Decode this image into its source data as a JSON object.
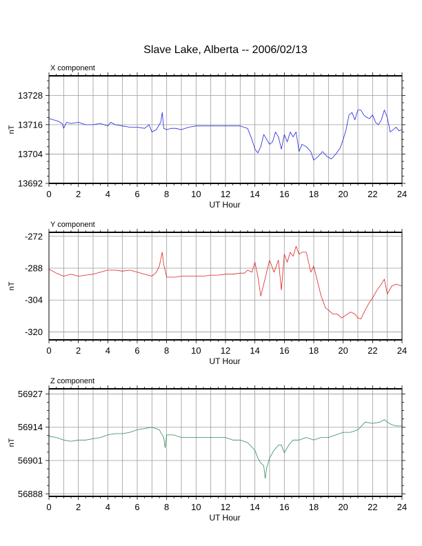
{
  "title": "Slave Lake, Alberta -- 2006/02/13",
  "chart_data": [
    {
      "type": "line",
      "title": "X component",
      "xlabel": "UT Hour",
      "ylabel": "nT",
      "xlim": [
        0,
        24
      ],
      "ylim": [
        13692,
        13736
      ],
      "xticks": [
        "0",
        "2",
        "4",
        "6",
        "8",
        "10",
        "12",
        "14",
        "16",
        "18",
        "20",
        "22",
        "24"
      ],
      "yticks": [
        "13692",
        "13704",
        "13716",
        "13728"
      ],
      "grid": true,
      "color": "#2020e0",
      "series": [
        {
          "x": [
            0,
            0.3,
            0.6,
            0.9,
            1.0,
            1.2,
            1.5,
            2.0,
            2.5,
            3.0,
            3.5,
            4.0,
            4.2,
            4.5,
            5.0,
            5.5,
            6.0,
            6.5,
            6.8,
            7.0,
            7.3,
            7.6,
            7.7,
            7.8,
            8.0,
            8.3,
            8.6,
            9.0,
            9.5,
            10.0,
            10.5,
            11.0,
            11.5,
            12.0,
            12.5,
            13.0,
            13.5,
            13.8,
            14.0,
            14.2,
            14.4,
            14.6,
            14.8,
            15.0,
            15.2,
            15.4,
            15.6,
            15.8,
            16.0,
            16.2,
            16.4,
            16.6,
            16.8,
            17.0,
            17.2,
            17.5,
            17.8,
            18.0,
            18.3,
            18.6,
            18.9,
            19.2,
            19.5,
            19.8,
            20.0,
            20.2,
            20.4,
            20.6,
            20.8,
            21.0,
            21.2,
            21.4,
            21.6,
            21.8,
            22.0,
            22.2,
            22.4,
            22.6,
            22.8,
            23.0,
            23.2,
            23.4,
            23.6,
            23.8,
            24.0
          ],
          "y": [
            13718.5,
            13718,
            13717.5,
            13716.5,
            13714.5,
            13717,
            13716.5,
            13717,
            13716,
            13716,
            13716.5,
            13715.5,
            13717,
            13716,
            13715.5,
            13715,
            13715,
            13714.5,
            13716,
            13713,
            13714,
            13717,
            13721,
            13714.5,
            13714,
            13714.5,
            13714.5,
            13714,
            13715,
            13715.5,
            13715.5,
            13715.5,
            13715.5,
            13715.5,
            13715.5,
            13715.5,
            13714.5,
            13710,
            13706,
            13704.5,
            13707,
            13712,
            13710,
            13708,
            13709,
            13713,
            13711,
            13706,
            13712,
            13709,
            13713,
            13711,
            13713,
            13705,
            13708,
            13707,
            13705,
            13701.5,
            13703,
            13705,
            13703,
            13702,
            13704,
            13706.5,
            13710,
            13714,
            13720,
            13721,
            13718,
            13722,
            13722,
            13720,
            13719,
            13718.5,
            13720,
            13717,
            13716,
            13718,
            13722,
            13719,
            13713,
            13714,
            13715,
            13713.5,
            13714
          ]
        }
      ]
    },
    {
      "type": "line",
      "title": "Y component",
      "xlabel": "UT Hour",
      "ylabel": "nT",
      "xlim": [
        0,
        24
      ],
      "ylim": [
        -324,
        -270
      ],
      "xticks": [
        "0",
        "2",
        "4",
        "6",
        "8",
        "10",
        "12",
        "14",
        "16",
        "18",
        "20",
        "22",
        "24"
      ],
      "yticks": [
        "-272",
        "-288",
        "-304",
        "-320"
      ],
      "grid": true,
      "color": "#e02020",
      "series": [
        {
          "x": [
            0,
            0.5,
            1.0,
            1.5,
            2.0,
            2.5,
            3.0,
            3.5,
            4.0,
            4.5,
            5.0,
            5.5,
            6.0,
            6.5,
            7.0,
            7.3,
            7.5,
            7.7,
            7.8,
            8.0,
            8.3,
            8.6,
            9.0,
            9.5,
            10.0,
            10.5,
            11.0,
            11.5,
            12.0,
            12.5,
            13.0,
            13.3,
            13.5,
            13.8,
            14.0,
            14.2,
            14.4,
            14.6,
            14.8,
            15.0,
            15.3,
            15.6,
            15.8,
            16.0,
            16.2,
            16.4,
            16.6,
            16.8,
            17.0,
            17.2,
            17.5,
            17.8,
            18.0,
            18.3,
            18.5,
            18.8,
            19.0,
            19.3,
            19.6,
            19.9,
            20.2,
            20.5,
            20.8,
            21.0,
            21.2,
            21.5,
            21.8,
            22.0,
            22.3,
            22.6,
            22.8,
            23.0,
            23.3,
            23.6,
            24.0
          ],
          "y": [
            -288.5,
            -290.5,
            -292,
            -291,
            -292,
            -291.5,
            -291,
            -290,
            -289,
            -289,
            -289.5,
            -289,
            -290,
            -291,
            -292,
            -290,
            -287,
            -280,
            -286,
            -292.5,
            -292.5,
            -292.5,
            -292,
            -292,
            -292,
            -292,
            -291.5,
            -291.5,
            -291,
            -291,
            -290.5,
            -290.5,
            -289,
            -290,
            -285,
            -292,
            -302,
            -296,
            -290,
            -284,
            -290,
            -284,
            -299,
            -281,
            -285,
            -280,
            -282,
            -277,
            -281,
            -280,
            -280,
            -290,
            -287,
            -296,
            -302,
            -308,
            -309,
            -311,
            -311,
            -313,
            -311.5,
            -310,
            -311,
            -313,
            -313.5,
            -309,
            -305,
            -303,
            -299,
            -296,
            -293.5,
            -301,
            -297,
            -296,
            -297
          ]
        }
      ]
    },
    {
      "type": "line",
      "title": "Z component",
      "xlabel": "UT Hour",
      "ylabel": "nT",
      "xlim": [
        0,
        24
      ],
      "ylim": [
        56887,
        56929
      ],
      "xticks": [
        "0",
        "2",
        "4",
        "6",
        "8",
        "10",
        "12",
        "14",
        "16",
        "18",
        "20",
        "22",
        "24"
      ],
      "yticks": [
        "56888",
        "56901",
        "56914",
        "56927"
      ],
      "grid": true,
      "color": "#2e8b57",
      "series": [
        {
          "x": [
            0,
            0.5,
            1.0,
            1.5,
            2.0,
            2.5,
            3.0,
            3.5,
            4.0,
            4.5,
            5.0,
            5.5,
            6.0,
            6.5,
            7.0,
            7.5,
            7.8,
            7.9,
            8.0,
            8.5,
            9.0,
            9.5,
            10.0,
            10.5,
            11.0,
            11.5,
            12.0,
            12.5,
            13.0,
            13.5,
            14.0,
            14.2,
            14.4,
            14.6,
            14.7,
            14.8,
            15.0,
            15.3,
            15.6,
            15.8,
            16.0,
            16.3,
            16.6,
            17.0,
            17.5,
            18.0,
            18.5,
            19.0,
            19.5,
            20.0,
            20.5,
            21.0,
            21.5,
            22.0,
            22.5,
            22.8,
            23.0,
            23.3,
            23.6,
            24.0
          ],
          "y": [
            56910.5,
            56910,
            56909,
            56908.5,
            56909,
            56909,
            56909.5,
            56910,
            56911,
            56911.5,
            56911.5,
            56912,
            56913,
            56913.5,
            56914,
            56913,
            56910,
            56906,
            56911,
            56911,
            56910,
            56910,
            56910,
            56910,
            56910,
            56910,
            56910,
            56909,
            56909,
            56908,
            56905,
            56902,
            56900,
            56899,
            56894,
            56898,
            56902,
            56905,
            56907,
            56907,
            56904,
            56907,
            56909,
            56909,
            56910,
            56909,
            56910,
            56910,
            56911,
            56912,
            56912,
            56913,
            56916,
            56915.5,
            56916,
            56917,
            56916,
            56915,
            56914.5,
            56914.5
          ]
        }
      ]
    }
  ]
}
